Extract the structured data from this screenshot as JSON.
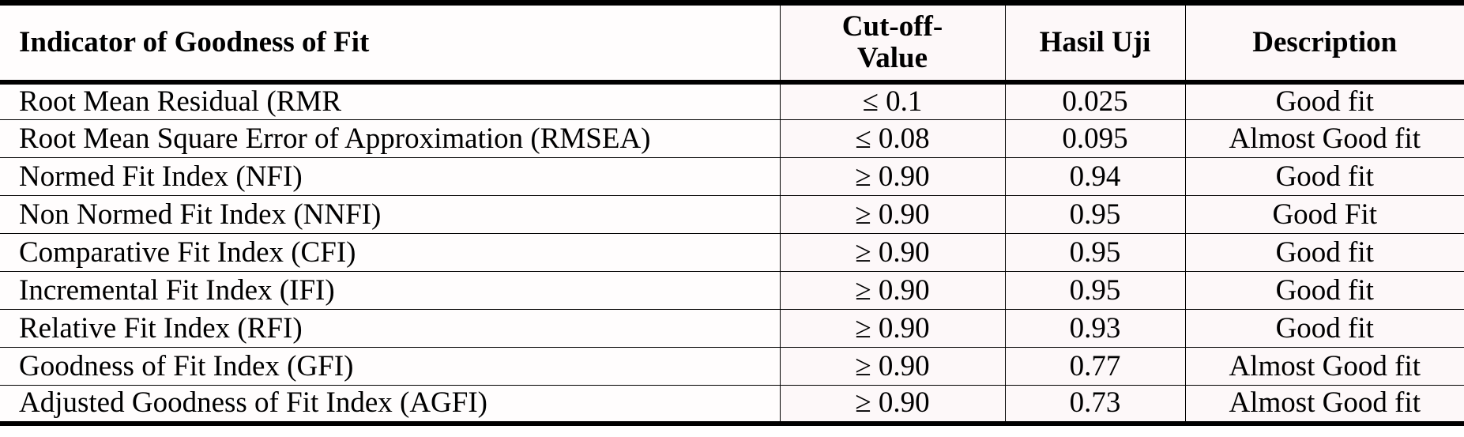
{
  "table": {
    "headers": [
      "Indicator of Goodness of Fit",
      "Cut-off-\nValue",
      "Hasil Uji",
      "Description"
    ],
    "header_line1": "Cut-off-",
    "header_line2": "Value",
    "rows": [
      [
        "Root Mean Residual (RMR",
        "≤ 0.1",
        "0.025",
        "Good fit"
      ],
      [
        "Root Mean Square Error of Approximation (RMSEA)",
        "≤ 0.08",
        "0.095",
        "Almost Good fit"
      ],
      [
        "Normed Fit Index (NFI)",
        "≥ 0.90",
        "0.94",
        "Good fit"
      ],
      [
        "Non Normed Fit Index (NNFI)",
        "≥ 0.90",
        "0.95",
        "Good Fit"
      ],
      [
        "Comparative Fit Index (CFI)",
        "≥ 0.90",
        "0.95",
        "Good fit"
      ],
      [
        "Incremental Fit Index (IFI)",
        "≥ 0.90",
        "0.95",
        "Good fit"
      ],
      [
        "Relative Fit Index (RFI)",
        "≥ 0.90",
        "0.93",
        "Good fit"
      ],
      [
        "Goodness of Fit Index (GFI)",
        "≥ 0.90",
        "0.77",
        "Almost Good fit"
      ],
      [
        "Adjusted Goodness of Fit Index (AGFI)",
        "≥ 0.90",
        "0.73",
        "Almost Good fit"
      ]
    ]
  }
}
